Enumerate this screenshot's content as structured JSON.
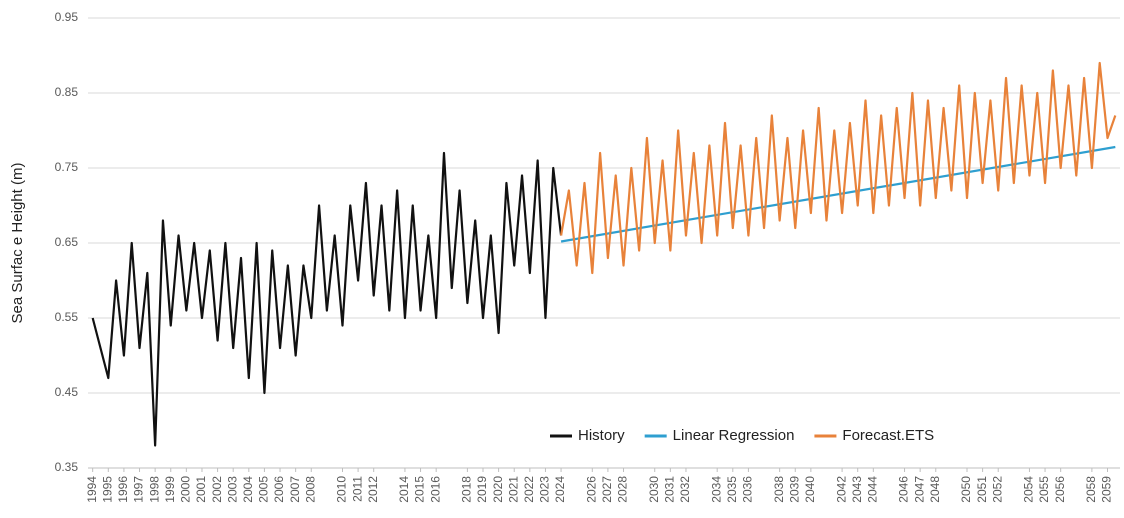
{
  "chart_data": {
    "type": "line",
    "y_label": "Sea Surfac e Height (m)",
    "xlim": [
      1993.7,
      2059.8
    ],
    "xticks": [
      1994,
      1995,
      1996,
      1997,
      1998,
      1999,
      2000,
      2001,
      2002,
      2003,
      2004,
      2005,
      2006,
      2007,
      2008,
      2010,
      2011,
      2012,
      2014,
      2015,
      2016,
      2018,
      2019,
      2020,
      2021,
      2022,
      2023,
      2024,
      2026,
      2027,
      2028,
      2030,
      2031,
      2032,
      2034,
      2035,
      2036,
      2038,
      2039,
      2040,
      2042,
      2043,
      2044,
      2046,
      2047,
      2048,
      2050,
      2051,
      2052,
      2054,
      2055,
      2056,
      2058,
      2059
    ],
    "ylim": [
      0.35,
      0.95
    ],
    "yticks": [
      0.35,
      0.45,
      0.55,
      0.65,
      0.75,
      0.85,
      0.95
    ],
    "grid": true,
    "legend": "lower right",
    "series": [
      {
        "name": "History",
        "color": "#111111",
        "x": [
          1994,
          1994.5,
          1995,
          1995.5,
          1996,
          1996.5,
          1997,
          1997.5,
          1998,
          1998.5,
          1999,
          1999.5,
          2000,
          2000.5,
          2001,
          2001.5,
          2002,
          2002.5,
          2003,
          2003.5,
          2004,
          2004.5,
          2005,
          2005.5,
          2006,
          2006.5,
          2007,
          2007.5,
          2008,
          2008.5,
          2009,
          2009.5,
          2010,
          2010.5,
          2011,
          2011.5,
          2012,
          2012.5,
          2013,
          2013.5,
          2014,
          2014.5,
          2015,
          2015.5,
          2016,
          2016.5,
          2017,
          2017.5,
          2018,
          2018.5,
          2019,
          2019.5,
          2020,
          2020.5,
          2021,
          2021.5,
          2022,
          2022.5,
          2023,
          2023.5,
          2024
        ],
        "values": [
          0.55,
          0.51,
          0.47,
          0.6,
          0.5,
          0.65,
          0.51,
          0.61,
          0.38,
          0.68,
          0.54,
          0.66,
          0.56,
          0.65,
          0.55,
          0.64,
          0.52,
          0.65,
          0.51,
          0.63,
          0.47,
          0.65,
          0.45,
          0.64,
          0.51,
          0.62,
          0.5,
          0.62,
          0.55,
          0.7,
          0.56,
          0.66,
          0.54,
          0.7,
          0.6,
          0.73,
          0.58,
          0.7,
          0.56,
          0.72,
          0.55,
          0.7,
          0.56,
          0.66,
          0.55,
          0.77,
          0.59,
          0.72,
          0.57,
          0.68,
          0.55,
          0.66,
          0.53,
          0.73,
          0.62,
          0.74,
          0.61,
          0.76,
          0.55,
          0.75,
          0.66
        ]
      },
      {
        "name": "Linear Regression",
        "color": "#2e9fd0",
        "x": [
          2024,
          2059.5
        ],
        "values": [
          0.652,
          0.778
        ]
      },
      {
        "name": "Forecast.ETS",
        "color": "#e8823a",
        "x": [
          2024,
          2024.5,
          2025,
          2025.5,
          2026,
          2026.5,
          2027,
          2027.5,
          2028,
          2028.5,
          2029,
          2029.5,
          2030,
          2030.5,
          2031,
          2031.5,
          2032,
          2032.5,
          2033,
          2033.5,
          2034,
          2034.5,
          2035,
          2035.5,
          2036,
          2036.5,
          2037,
          2037.5,
          2038,
          2038.5,
          2039,
          2039.5,
          2040,
          2040.5,
          2041,
          2041.5,
          2042,
          2042.5,
          2043,
          2043.5,
          2044,
          2044.5,
          2045,
          2045.5,
          2046,
          2046.5,
          2047,
          2047.5,
          2048,
          2048.5,
          2049,
          2049.5,
          2050,
          2050.5,
          2051,
          2051.5,
          2052,
          2052.5,
          2053,
          2053.5,
          2054,
          2054.5,
          2055,
          2055.5,
          2056,
          2056.5,
          2057,
          2057.5,
          2058,
          2058.5,
          2059,
          2059.5
        ],
        "values": [
          0.66,
          0.72,
          0.62,
          0.73,
          0.61,
          0.77,
          0.63,
          0.74,
          0.62,
          0.75,
          0.64,
          0.79,
          0.65,
          0.76,
          0.64,
          0.8,
          0.66,
          0.77,
          0.65,
          0.78,
          0.66,
          0.81,
          0.67,
          0.78,
          0.66,
          0.79,
          0.67,
          0.82,
          0.68,
          0.79,
          0.67,
          0.8,
          0.69,
          0.83,
          0.68,
          0.8,
          0.69,
          0.81,
          0.7,
          0.84,
          0.69,
          0.82,
          0.7,
          0.83,
          0.71,
          0.85,
          0.7,
          0.84,
          0.71,
          0.83,
          0.72,
          0.86,
          0.71,
          0.85,
          0.73,
          0.84,
          0.72,
          0.87,
          0.73,
          0.86,
          0.74,
          0.85,
          0.73,
          0.88,
          0.75,
          0.86,
          0.74,
          0.87,
          0.75,
          0.89,
          0.79,
          0.82
        ]
      }
    ]
  }
}
